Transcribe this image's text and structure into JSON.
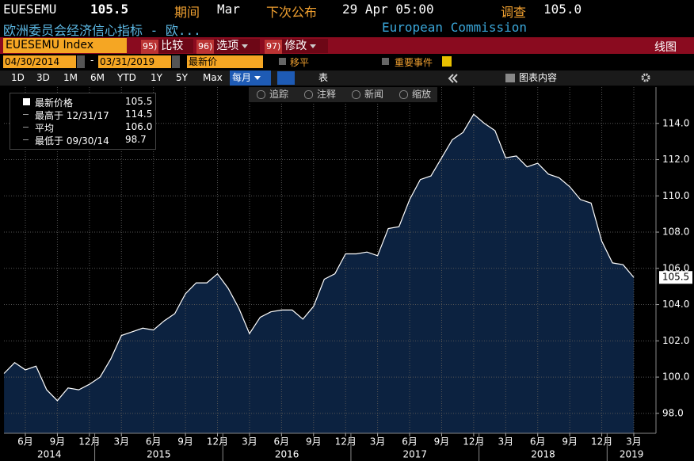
{
  "header": {
    "ticker": "EUESEMU",
    "price": "105.5",
    "period_label": "期间",
    "period": "Mar",
    "next_label": "下次公布",
    "next": "29 Apr 05:00",
    "survey_label": "调查",
    "survey": "105.0",
    "name": "欧洲委员会经济信心指标 - 欧...",
    "source": "European Commission"
  },
  "toolbar": {
    "security": "EUESEMU Index",
    "buttons": [
      {
        "num": "95)",
        "label": "比较"
      },
      {
        "num": "96)",
        "label": "选项"
      },
      {
        "num": "97)",
        "label": "修改"
      }
    ],
    "view": "线图"
  },
  "controls": {
    "start": "04/30/2014",
    "sep": "-",
    "end": "03/31/2019",
    "field": "最新价",
    "smooth": "移平",
    "events": "重要事件",
    "ranges": [
      "1D",
      "3D",
      "1M",
      "6M",
      "YTD",
      "1Y",
      "5Y",
      "Max"
    ],
    "frequency": "每月",
    "table": "表",
    "contents": "图表内容"
  },
  "chart_tools": [
    "追踪",
    "注释",
    "新闻",
    "缩放"
  ],
  "legend_stats": [
    {
      "label": "最新价格",
      "value": "105.5"
    },
    {
      "label": "最高于 12/31/17",
      "value": "114.5"
    },
    {
      "label": "平均",
      "value": "106.0"
    },
    {
      "label": "最低于 09/30/14",
      "value": "98.7"
    }
  ],
  "chart_data": {
    "type": "area",
    "color": "#0c2240",
    "line_color": "#ffffff",
    "categories": [
      null,
      null,
      "6月",
      null,
      null,
      "9月",
      null,
      null,
      "12月",
      null,
      null,
      "3月",
      null,
      null,
      "6月",
      null,
      null,
      "9月",
      null,
      null,
      "12月",
      null,
      null,
      "3月",
      null,
      null,
      "6月",
      null,
      null,
      "9月",
      null,
      null,
      "12月",
      null,
      null,
      "3月",
      null,
      null,
      "6月",
      null,
      null,
      "9月",
      null,
      null,
      "12月",
      null,
      null,
      "3月",
      null,
      null,
      "6月",
      null,
      null,
      "9月",
      null,
      null,
      "12月",
      null,
      null,
      "3月"
    ],
    "values": [
      100.2,
      100.8,
      100.4,
      100.6,
      99.3,
      98.7,
      99.4,
      99.3,
      99.6,
      100.0,
      101.0,
      102.3,
      102.5,
      102.7,
      102.6,
      103.1,
      103.5,
      104.6,
      105.2,
      105.2,
      105.7,
      104.9,
      103.8,
      102.4,
      103.3,
      103.6,
      103.7,
      103.7,
      103.2,
      103.9,
      105.4,
      105.7,
      106.8,
      106.8,
      106.9,
      106.7,
      108.2,
      108.3,
      109.8,
      110.9,
      111.1,
      112.1,
      113.1,
      113.5,
      114.5,
      114.0,
      113.6,
      112.1,
      112.2,
      111.6,
      111.8,
      111.2,
      111.0,
      110.5,
      109.8,
      109.6,
      107.5,
      106.3,
      106.2,
      105.5
    ],
    "years": [
      "2014",
      "2015",
      "2016",
      "2017",
      "2018",
      "2019"
    ],
    "last_label": "105.5",
    "ylim": [
      96.9,
      116.0
    ],
    "yticks": [
      {
        "value": 98,
        "label": "98.0"
      },
      {
        "value": 100,
        "label": "100.0"
      },
      {
        "value": 102,
        "label": "102.0"
      },
      {
        "value": 104,
        "label": "104.0"
      },
      {
        "value": 106,
        "label": "106.0"
      },
      {
        "value": 108,
        "label": "108.0"
      },
      {
        "value": 110,
        "label": "110.0"
      },
      {
        "value": 112,
        "label": "112.0"
      },
      {
        "value": 114,
        "label": "114.0"
      }
    ],
    "grid": true
  }
}
